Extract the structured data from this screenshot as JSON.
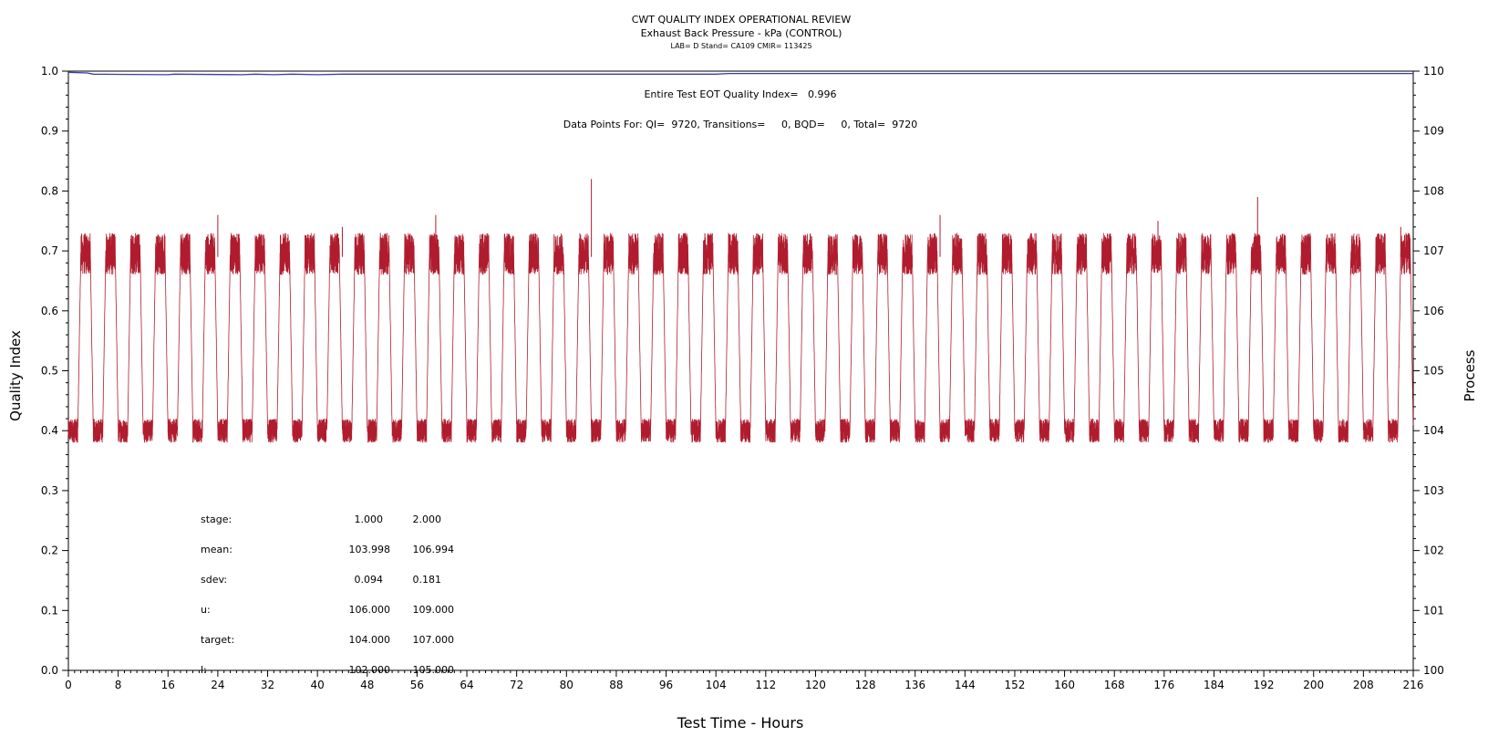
{
  "header": {
    "title": "CWT QUALITY INDEX OPERATIONAL REVIEW",
    "subtitle": "Exhaust Back Pressure - kPa (CONTROL)",
    "info": "LAB= D Stand= CA109 CMIR= 113425"
  },
  "annotations": {
    "eot_qi": "Entire Test EOT Quality Index=   0.996",
    "data_points": "Data Points For: QI=  9720, Transitions=     0, BQD=     0, Total=  9720"
  },
  "stats_table": {
    "rows": [
      {
        "label": "stage:",
        "v1": "1.000",
        "v2": "2.000"
      },
      {
        "label": "mean:",
        "v1": "103.998",
        "v2": "106.994"
      },
      {
        "label": "sdev:",
        "v1": "0.094",
        "v2": "0.181"
      },
      {
        "label": "u:",
        "v1": "106.000",
        "v2": "109.000"
      },
      {
        "label": "target:",
        "v1": "104.000",
        "v2": "107.000"
      },
      {
        "label": "l:",
        "v1": "102.000",
        "v2": "105.000"
      }
    ]
  },
  "chart_data": {
    "type": "line",
    "xlabel": "Test Time - Hours",
    "ylabel_left": "Quality Index",
    "ylabel_right": "Process",
    "xlim": [
      0,
      216
    ],
    "ylim_left": [
      0,
      1
    ],
    "ylim_right": [
      100,
      110
    ],
    "x_ticks": [
      0,
      8,
      16,
      24,
      32,
      40,
      48,
      56,
      64,
      72,
      80,
      88,
      96,
      104,
      112,
      120,
      128,
      136,
      144,
      152,
      160,
      168,
      176,
      184,
      192,
      200,
      208,
      216
    ],
    "y_ticks_left": [
      "0.0",
      "0.1",
      "0.2",
      "0.3",
      "0.4",
      "0.5",
      "0.6",
      "0.7",
      "0.8",
      "0.9",
      "1.0"
    ],
    "y_ticks_right": [
      "100",
      "101",
      "102",
      "103",
      "104",
      "105",
      "106",
      "107",
      "108",
      "109",
      "110"
    ],
    "grid": false,
    "series": [
      {
        "axis": "left",
        "color": "#3b3bb0",
        "points": [
          [
            0,
            0.998
          ],
          [
            3,
            0.997
          ],
          [
            4,
            0.995
          ],
          [
            16,
            0.994
          ],
          [
            17,
            0.995
          ],
          [
            28,
            0.994
          ],
          [
            30,
            0.995
          ],
          [
            33,
            0.994
          ],
          [
            36,
            0.995
          ],
          [
            40,
            0.994
          ],
          [
            44,
            0.995
          ],
          [
            104,
            0.995
          ],
          [
            106,
            0.996
          ],
          [
            216,
            0.996
          ]
        ]
      },
      {
        "axis": "right",
        "color": "#b01c2e",
        "cycle_hours": 4,
        "low_stage_level": 104.0,
        "high_stage_level": 107.0,
        "low_stage_band": [
          103.8,
          104.2
        ],
        "high_stage_band": [
          106.6,
          107.3
        ],
        "spikes": [
          [
            24,
            107.6
          ],
          [
            44,
            107.4
          ],
          [
            59,
            107.6
          ],
          [
            84,
            108.2
          ],
          [
            140,
            107.6
          ],
          [
            175,
            107.5
          ],
          [
            191,
            107.9
          ],
          [
            214,
            107.4
          ]
        ]
      }
    ]
  }
}
